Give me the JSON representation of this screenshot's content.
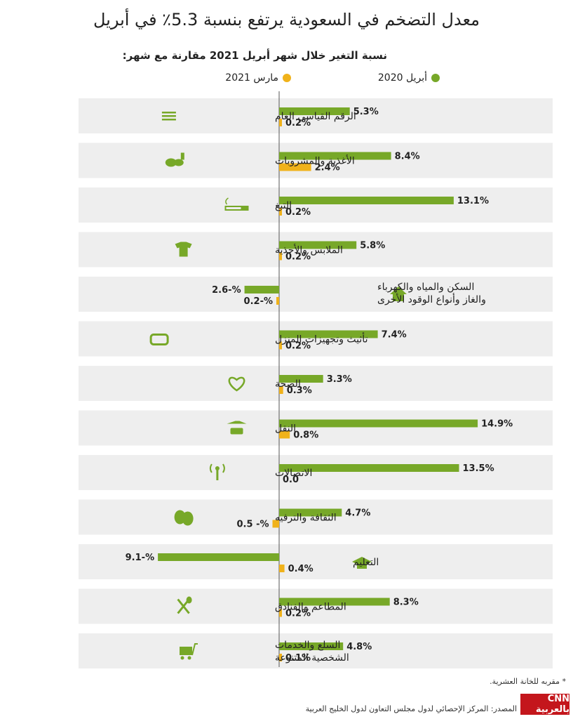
{
  "title": "معدل التضخم في السعودية يرتفع بنسبة 5.3٪ في أبريل",
  "subtitle": "نسبة التغير خلال شهر أبريل 2021 مقارنة مع شهر:",
  "legend": [
    {
      "label": "أبريل 2020",
      "color": "#77a828"
    },
    {
      "label": "مارس 2021",
      "color": "#f0b21a"
    }
  ],
  "footnote": "* مقربه للخانة العشرية.",
  "source": "المصدر: المركز الإحصائي لدول مجلس التعاون لدول الخليج العربية",
  "logo_text": "CNN بالعربية",
  "chart_data": {
    "type": "bar",
    "orientation": "horizontal",
    "categories": [
      {
        "label": [
          "الرقم القياسي العام"
        ],
        "icon": "list-icon"
      },
      {
        "label": [
          "الأغذية والمشروبات"
        ],
        "icon": "food-drink-icon"
      },
      {
        "label": [
          "التبغ"
        ],
        "icon": "cigarette-icon"
      },
      {
        "label": [
          "الملابس والأحذية"
        ],
        "icon": "clothes-shoe-icon"
      },
      {
        "label": [
          "السكن والمياه والكهرباء",
          "والغاز وأنواع الوقود الأخرى"
        ],
        "icon": "house-icon"
      },
      {
        "label": [
          "تأثيث وتجهيزات المنزل"
        ],
        "icon": "sofa-icon"
      },
      {
        "label": [
          "الصحة"
        ],
        "icon": "heart-pulse-icon"
      },
      {
        "label": [
          "النقل"
        ],
        "icon": "transport-icon"
      },
      {
        "label": [
          "الاتصالات"
        ],
        "icon": "antenna-icon"
      },
      {
        "label": [
          "الثقافة والترفيه"
        ],
        "icon": "theater-masks-icon"
      },
      {
        "label": [
          "التعليم"
        ],
        "icon": "graduation-cap-icon"
      },
      {
        "label": [
          "المطاعم والفنادق"
        ],
        "icon": "fork-spoon-icon"
      },
      {
        "label": [
          "السلع والخدمات",
          "الشخصية المتنوعة"
        ],
        "icon": "cart-icon"
      }
    ],
    "series": [
      {
        "name": "أبريل 2020",
        "color": "#77a828",
        "values": [
          5.3,
          8.4,
          13.1,
          5.8,
          -2.6,
          7.4,
          3.3,
          14.9,
          13.5,
          4.7,
          -9.1,
          8.3,
          4.8
        ],
        "value_labels": [
          "5.3%",
          "8.4%",
          "13.1%",
          "5.8%",
          "2.6-%",
          "7.4%",
          "3.3%",
          "14.9%",
          "13.5%",
          "4.7%",
          "9.1-%",
          "8.3%",
          "4.8%"
        ]
      },
      {
        "name": "مارس 2021",
        "color": "#f0b21a",
        "values": [
          0.2,
          2.4,
          0.2,
          0.2,
          -0.2,
          0.2,
          0.3,
          0.8,
          0.0,
          -0.5,
          0.4,
          0.2,
          0.1
        ],
        "value_labels": [
          "0.2%",
          "2.4%",
          "0.2%",
          "0.2%",
          "0.2-%",
          "0.2%",
          "0.3%",
          "0.8%",
          "0.0",
          "0.5 -%",
          "0.4%",
          "0.2%",
          "0.1%"
        ]
      }
    ],
    "grid": false
  }
}
